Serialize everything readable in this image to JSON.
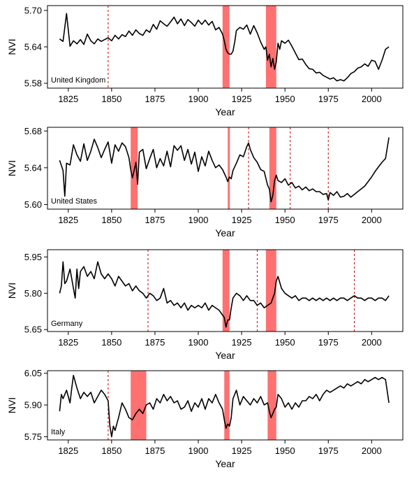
{
  "chart_data": [
    {
      "type": "line",
      "panel_label": "United Kingdom",
      "xlabel": "Year",
      "ylabel": "NVI",
      "xlim": [
        1813,
        2018
      ],
      "ylim": [
        5.572,
        5.708
      ],
      "xticks": [
        1825,
        1850,
        1875,
        1900,
        1925,
        1950,
        1975,
        2000
      ],
      "yticks": [
        5.58,
        5.64,
        5.7
      ],
      "ytick_labels": [
        "5.58",
        "5.64",
        "5.70"
      ],
      "shaded_periods": [
        [
          1914,
          1918
        ],
        [
          1939,
          1945
        ]
      ],
      "dashed_years": [
        1848
      ],
      "line_color": "#000000",
      "shade_color": "#ff7070",
      "dash_color": "#cc0000",
      "series": [
        {
          "x": [
            1820,
            1822,
            1824,
            1826,
            1828,
            1830,
            1832,
            1834,
            1836,
            1838,
            1840,
            1842,
            1844,
            1846,
            1848,
            1850,
            1852,
            1854,
            1856,
            1858,
            1860,
            1862,
            1864,
            1866,
            1868,
            1870,
            1872,
            1874,
            1876,
            1878,
            1880,
            1882,
            1884,
            1886,
            1888,
            1890,
            1892,
            1894,
            1896,
            1898,
            1900,
            1902,
            1904,
            1906,
            1908,
            1910,
            1912,
            1914,
            1915,
            1916,
            1917,
            1918,
            1919,
            1920,
            1921,
            1922,
            1924,
            1926,
            1928,
            1930,
            1932,
            1934,
            1936,
            1938,
            1939,
            1940,
            1941,
            1942,
            1943,
            1944,
            1945,
            1946,
            1947,
            1948,
            1950,
            1952,
            1954,
            1956,
            1958,
            1960,
            1962,
            1964,
            1966,
            1968,
            1970,
            1972,
            1974,
            1976,
            1978,
            1980,
            1982,
            1984,
            1986,
            1988,
            1990,
            1992,
            1994,
            1996,
            1998,
            2000,
            2002,
            2004,
            2006,
            2008,
            2010
          ],
          "y": [
            5.653,
            5.649,
            5.695,
            5.641,
            5.65,
            5.645,
            5.652,
            5.644,
            5.661,
            5.65,
            5.645,
            5.653,
            5.649,
            5.652,
            5.655,
            5.65,
            5.659,
            5.653,
            5.66,
            5.657,
            5.666,
            5.659,
            5.668,
            5.662,
            5.659,
            5.668,
            5.664,
            5.677,
            5.669,
            5.683,
            5.678,
            5.674,
            5.681,
            5.689,
            5.678,
            5.686,
            5.675,
            5.685,
            5.68,
            5.674,
            5.684,
            5.677,
            5.684,
            5.676,
            5.682,
            5.668,
            5.672,
            5.661,
            5.65,
            5.636,
            5.63,
            5.628,
            5.628,
            5.633,
            5.648,
            5.667,
            5.672,
            5.669,
            5.676,
            5.661,
            5.675,
            5.663,
            5.648,
            5.636,
            5.64,
            5.618,
            5.628,
            5.607,
            5.621,
            5.603,
            5.615,
            5.646,
            5.636,
            5.65,
            5.646,
            5.651,
            5.641,
            5.63,
            5.619,
            5.62,
            5.611,
            5.604,
            5.603,
            5.597,
            5.598,
            5.593,
            5.59,
            5.587,
            5.589,
            5.584,
            5.586,
            5.584,
            5.589,
            5.596,
            5.599,
            5.605,
            5.607,
            5.612,
            5.608,
            5.618,
            5.616,
            5.603,
            5.618,
            5.636,
            5.64
          ]
        }
      ]
    },
    {
      "type": "line",
      "panel_label": "United States",
      "xlabel": "Year",
      "ylabel": "NVI",
      "xlim": [
        1813,
        2018
      ],
      "ylim": [
        5.595,
        5.684
      ],
      "xticks": [
        1825,
        1850,
        1875,
        1900,
        1925,
        1950,
        1975,
        2000
      ],
      "yticks": [
        5.6,
        5.64,
        5.68
      ],
      "ytick_labels": [
        "5.60",
        "5.64",
        "5.68"
      ],
      "shaded_periods": [
        [
          1861,
          1865
        ],
        [
          1917,
          1918
        ],
        [
          1941,
          1945
        ]
      ],
      "dashed_years": [
        1929,
        1953,
        1975
      ],
      "line_color": "#000000",
      "shade_color": "#ff7070",
      "dash_color": "#cc0000",
      "series": [
        {
          "x": [
            1820,
            1822,
            1823,
            1824,
            1826,
            1828,
            1830,
            1832,
            1834,
            1836,
            1838,
            1840,
            1842,
            1844,
            1846,
            1848,
            1850,
            1852,
            1854,
            1856,
            1858,
            1860,
            1861,
            1862,
            1863,
            1864,
            1865,
            1866,
            1868,
            1870,
            1872,
            1874,
            1876,
            1878,
            1880,
            1882,
            1884,
            1886,
            1888,
            1890,
            1892,
            1894,
            1896,
            1898,
            1900,
            1902,
            1904,
            1906,
            1908,
            1910,
            1912,
            1914,
            1916,
            1917,
            1918,
            1919,
            1920,
            1922,
            1924,
            1926,
            1928,
            1929,
            1930,
            1932,
            1934,
            1936,
            1938,
            1940,
            1941,
            1942,
            1943,
            1944,
            1945,
            1946,
            1948,
            1950,
            1952,
            1954,
            1956,
            1958,
            1960,
            1962,
            1964,
            1966,
            1968,
            1970,
            1972,
            1974,
            1975,
            1976,
            1978,
            1980,
            1982,
            1984,
            1986,
            1988,
            1990,
            1992,
            1994,
            1996,
            1998,
            2000,
            2002,
            2004,
            2006,
            2008,
            2010
          ],
          "y": [
            5.648,
            5.637,
            5.609,
            5.645,
            5.643,
            5.665,
            5.654,
            5.647,
            5.666,
            5.648,
            5.658,
            5.671,
            5.662,
            5.651,
            5.66,
            5.668,
            5.645,
            5.665,
            5.658,
            5.667,
            5.663,
            5.651,
            5.638,
            5.629,
            5.637,
            5.646,
            5.622,
            5.657,
            5.66,
            5.639,
            5.65,
            5.66,
            5.64,
            5.65,
            5.642,
            5.658,
            5.641,
            5.664,
            5.659,
            5.664,
            5.648,
            5.66,
            5.644,
            5.657,
            5.636,
            5.652,
            5.642,
            5.658,
            5.648,
            5.64,
            5.643,
            5.638,
            5.63,
            5.625,
            5.63,
            5.628,
            5.637,
            5.645,
            5.654,
            5.652,
            5.663,
            5.667,
            5.66,
            5.651,
            5.646,
            5.638,
            5.636,
            5.621,
            5.617,
            5.603,
            5.61,
            5.626,
            5.632,
            5.626,
            5.624,
            5.628,
            5.621,
            5.624,
            5.618,
            5.62,
            5.616,
            5.619,
            5.615,
            5.617,
            5.614,
            5.614,
            5.611,
            5.612,
            5.605,
            5.613,
            5.61,
            5.614,
            5.608,
            5.609,
            5.612,
            5.608,
            5.611,
            5.614,
            5.617,
            5.62,
            5.625,
            5.63,
            5.636,
            5.641,
            5.646,
            5.65,
            5.673
          ]
        }
      ]
    },
    {
      "type": "line",
      "panel_label": "Germany",
      "xlabel": "Year",
      "ylabel": "NVI",
      "xlim": [
        1813,
        2018
      ],
      "ylim": [
        5.642,
        5.98
      ],
      "xticks": [
        1825,
        1850,
        1875,
        1900,
        1925,
        1950,
        1975,
        2000
      ],
      "yticks": [
        5.65,
        5.8,
        5.95
      ],
      "ytick_labels": [
        "5.65",
        "5.80",
        "5.95"
      ],
      "shaded_periods": [
        [
          1914,
          1918
        ],
        [
          1939,
          1945
        ]
      ],
      "dashed_years": [
        1871,
        1934,
        1990
      ],
      "line_color": "#000000",
      "shade_color": "#ff7070",
      "dash_color": "#cc0000",
      "series": [
        {
          "x": [
            1820,
            1821,
            1822,
            1823,
            1824,
            1826,
            1828,
            1829,
            1830,
            1831,
            1832,
            1834,
            1836,
            1838,
            1840,
            1842,
            1844,
            1846,
            1848,
            1850,
            1852,
            1854,
            1856,
            1858,
            1860,
            1862,
            1864,
            1866,
            1868,
            1870,
            1872,
            1874,
            1876,
            1878,
            1880,
            1882,
            1884,
            1886,
            1888,
            1890,
            1892,
            1894,
            1896,
            1898,
            1900,
            1902,
            1904,
            1906,
            1908,
            1910,
            1912,
            1914,
            1915,
            1916,
            1917,
            1918,
            1919,
            1920,
            1922,
            1924,
            1926,
            1928,
            1930,
            1932,
            1934,
            1936,
            1938,
            1940,
            1942,
            1943,
            1944,
            1945,
            1946,
            1948,
            1950,
            1952,
            1954,
            1956,
            1958,
            1960,
            1962,
            1964,
            1966,
            1968,
            1970,
            1972,
            1974,
            1976,
            1978,
            1980,
            1982,
            1984,
            1986,
            1988,
            1990,
            1992,
            1994,
            1996,
            1998,
            2000,
            2002,
            2004,
            2006,
            2008,
            2010
          ],
          "y": [
            5.8,
            5.83,
            5.93,
            5.84,
            5.85,
            5.9,
            5.82,
            5.78,
            5.9,
            5.82,
            5.89,
            5.91,
            5.87,
            5.89,
            5.86,
            5.93,
            5.88,
            5.86,
            5.88,
            5.86,
            5.83,
            5.87,
            5.85,
            5.83,
            5.84,
            5.81,
            5.83,
            5.81,
            5.8,
            5.78,
            5.8,
            5.79,
            5.77,
            5.78,
            5.82,
            5.76,
            5.77,
            5.75,
            5.76,
            5.74,
            5.76,
            5.73,
            5.75,
            5.74,
            5.75,
            5.74,
            5.76,
            5.73,
            5.75,
            5.74,
            5.73,
            5.71,
            5.7,
            5.66,
            5.69,
            5.69,
            5.74,
            5.78,
            5.8,
            5.79,
            5.77,
            5.79,
            5.77,
            5.77,
            5.75,
            5.76,
            5.74,
            5.75,
            5.76,
            5.78,
            5.8,
            5.85,
            5.87,
            5.82,
            5.8,
            5.79,
            5.78,
            5.79,
            5.77,
            5.78,
            5.78,
            5.77,
            5.78,
            5.77,
            5.78,
            5.77,
            5.78,
            5.77,
            5.78,
            5.77,
            5.78,
            5.78,
            5.77,
            5.78,
            5.79,
            5.78,
            5.78,
            5.77,
            5.78,
            5.78,
            5.77,
            5.78,
            5.78,
            5.77,
            5.79
          ]
        }
      ]
    },
    {
      "type": "line",
      "panel_label": "Italy",
      "xlabel": "Year",
      "ylabel": "NVI",
      "xlim": [
        1813,
        2018
      ],
      "ylim": [
        5.735,
        6.062
      ],
      "xticks": [
        1825,
        1850,
        1875,
        1900,
        1925,
        1950,
        1975,
        2000
      ],
      "yticks": [
        5.75,
        5.9,
        6.05
      ],
      "ytick_labels": [
        "5.75",
        "5.90",
        "6.05"
      ],
      "shaded_periods": [
        [
          1861,
          1870
        ],
        [
          1915,
          1918
        ],
        [
          1940,
          1945
        ]
      ],
      "dashed_years": [
        1848
      ],
      "line_color": "#000000",
      "shade_color": "#ff7070",
      "dash_color": "#cc0000",
      "series": [
        {
          "x": [
            1820,
            1821,
            1822,
            1824,
            1826,
            1827,
            1828,
            1830,
            1832,
            1834,
            1836,
            1838,
            1840,
            1842,
            1844,
            1846,
            1848,
            1849,
            1850,
            1851,
            1852,
            1854,
            1856,
            1858,
            1860,
            1862,
            1864,
            1866,
            1868,
            1870,
            1872,
            1874,
            1876,
            1878,
            1880,
            1882,
            1884,
            1886,
            1888,
            1890,
            1892,
            1894,
            1896,
            1898,
            1900,
            1902,
            1904,
            1906,
            1908,
            1910,
            1912,
            1914,
            1915,
            1916,
            1917,
            1918,
            1919,
            1920,
            1922,
            1924,
            1926,
            1928,
            1930,
            1932,
            1934,
            1936,
            1938,
            1940,
            1941,
            1942,
            1943,
            1944,
            1945,
            1946,
            1948,
            1950,
            1952,
            1954,
            1956,
            1958,
            1960,
            1962,
            1964,
            1966,
            1968,
            1970,
            1972,
            1974,
            1976,
            1978,
            1980,
            1982,
            1984,
            1986,
            1988,
            1990,
            1992,
            1994,
            1996,
            1998,
            2000,
            2002,
            2004,
            2006,
            2008,
            2010
          ],
          "y": [
            5.87,
            5.95,
            5.93,
            5.97,
            5.91,
            5.98,
            6.04,
            5.98,
            5.93,
            5.96,
            5.94,
            5.96,
            5.91,
            5.94,
            5.97,
            5.95,
            5.92,
            5.8,
            5.75,
            5.8,
            5.78,
            5.84,
            5.91,
            5.88,
            5.84,
            5.83,
            5.86,
            5.88,
            5.86,
            5.9,
            5.91,
            5.88,
            5.93,
            5.91,
            5.95,
            5.92,
            5.94,
            5.91,
            5.92,
            5.88,
            5.89,
            5.92,
            5.87,
            5.91,
            5.89,
            5.93,
            5.88,
            5.93,
            5.91,
            5.95,
            5.91,
            5.88,
            5.83,
            5.79,
            5.81,
            5.8,
            5.84,
            5.93,
            5.97,
            5.9,
            5.94,
            5.92,
            5.9,
            5.93,
            5.91,
            5.94,
            5.9,
            5.91,
            5.87,
            5.84,
            5.86,
            5.88,
            5.89,
            5.95,
            5.93,
            5.89,
            5.91,
            5.88,
            5.91,
            5.89,
            5.92,
            5.92,
            5.94,
            5.93,
            5.95,
            5.92,
            5.95,
            5.97,
            5.96,
            5.97,
            5.98,
            5.99,
            5.98,
            6.0,
            5.99,
            6.0,
            6.01,
            6.0,
            6.02,
            6.01,
            6.02,
            6.03,
            6.02,
            6.03,
            6.02,
            5.91
          ]
        }
      ]
    }
  ]
}
